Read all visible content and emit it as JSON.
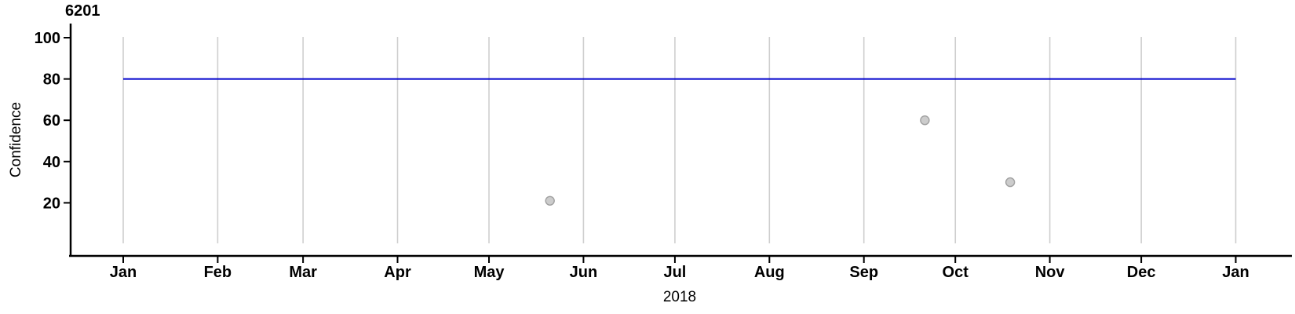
{
  "chart_data": {
    "type": "scatter",
    "title": "6201",
    "xlabel": "2018",
    "ylabel": "Confidence",
    "x_unit": "day of year 2018 (Jan 1 = 0)",
    "x_ticks": [
      {
        "label": "Jan",
        "day": 0
      },
      {
        "label": "Feb",
        "day": 31
      },
      {
        "label": "Mar",
        "day": 59
      },
      {
        "label": "Apr",
        "day": 90
      },
      {
        "label": "May",
        "day": 120
      },
      {
        "label": "Jun",
        "day": 151
      },
      {
        "label": "Jul",
        "day": 181
      },
      {
        "label": "Aug",
        "day": 212
      },
      {
        "label": "Sep",
        "day": 243
      },
      {
        "label": "Oct",
        "day": 273
      },
      {
        "label": "Nov",
        "day": 304
      },
      {
        "label": "Dec",
        "day": 334
      },
      {
        "label": "Jan",
        "day": 365
      }
    ],
    "y_ticks": [
      20,
      40,
      60,
      80,
      100
    ],
    "ylim": [
      0,
      101
    ],
    "xlim_days": [
      -17,
      383
    ],
    "grid": {
      "vertical_month_gridlines": true,
      "horizontal_gridlines": false
    },
    "legend": "none",
    "points": [
      {
        "date": "2018-05-21",
        "day": 140,
        "value": 21
      },
      {
        "date": "2018-09-21",
        "day": 263,
        "value": 60
      },
      {
        "date": "2018-10-19",
        "day": 291,
        "value": 30
      }
    ],
    "reference_line": {
      "value": 80,
      "from_day": 0,
      "to_day": 365
    },
    "colors": {
      "background": "#ffffff",
      "axis": "#000000",
      "text": "#000000",
      "gridline": "#cfcfcf",
      "reference_line": "#0000cc",
      "point_fill": "#cccccc",
      "point_stroke": "#a0a0a0"
    }
  }
}
